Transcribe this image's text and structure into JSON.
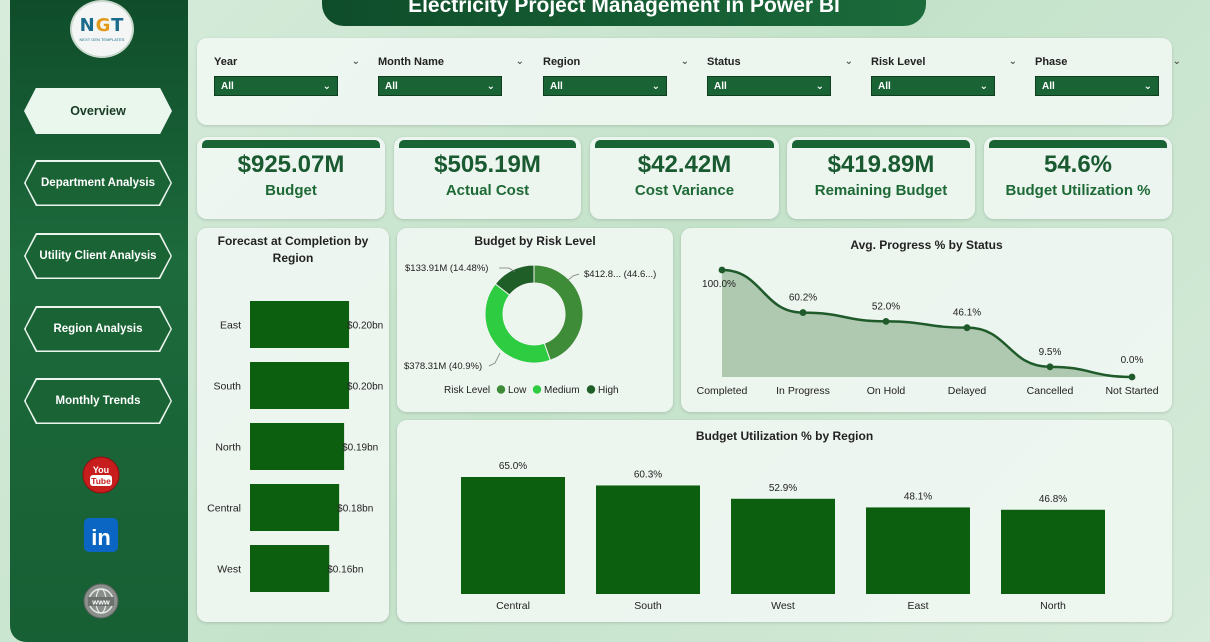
{
  "title": "Electricity Project Management in Power BI",
  "logo": {
    "text": "NGT",
    "subtext": "NEXT GEN TEMPLATES"
  },
  "nav": {
    "items": [
      {
        "label": "Overview",
        "active": true
      },
      {
        "label": "Department Analysis",
        "active": false
      },
      {
        "label": "Utility Client Analysis",
        "active": false
      },
      {
        "label": "Region Analysis",
        "active": false
      },
      {
        "label": "Monthly Trends",
        "active": false
      }
    ]
  },
  "social": [
    {
      "icon": "youtube-icon",
      "text": "You Tube"
    },
    {
      "icon": "linkedin-icon",
      "text": "in"
    },
    {
      "icon": "website-icon",
      "text": "www"
    }
  ],
  "filters": [
    {
      "label": "Year",
      "value": "All"
    },
    {
      "label": "Month Name",
      "value": "All"
    },
    {
      "label": "Region",
      "value": "All"
    },
    {
      "label": "Status",
      "value": "All"
    },
    {
      "label": "Risk Level",
      "value": "All"
    },
    {
      "label": "Phase",
      "value": "All"
    }
  ],
  "kpis": [
    {
      "value": "$925.07M",
      "label": "Budget"
    },
    {
      "value": "$505.19M",
      "label": "Actual Cost"
    },
    {
      "value": "$42.42M",
      "label": "Cost Variance"
    },
    {
      "value": "$419.89M",
      "label": "Remaining Budget"
    },
    {
      "value": "54.6%",
      "label": "Budget Utilization %"
    }
  ],
  "colors": {
    "dark_green": "#1a6335",
    "bar_green": "#0d5f10",
    "medium_green": "#2ecc40",
    "low_green": "#3e8b38",
    "high_green": "#1f5e26",
    "area_fill": "#a3bfa5"
  },
  "chart_data": [
    {
      "type": "bar",
      "orientation": "horizontal",
      "title": "Forecast at Completion by Region",
      "categories": [
        "East",
        "South",
        "North",
        "Central",
        "West"
      ],
      "values": [
        0.2,
        0.2,
        0.19,
        0.18,
        0.16
      ],
      "labels": [
        "$0.20bn",
        "$0.20bn",
        "$0.19bn",
        "$0.18bn",
        "$0.16bn"
      ],
      "xlim": [
        0,
        0.21
      ]
    },
    {
      "type": "pie",
      "title": "Budget by Risk Level",
      "legend_title": "Risk Level",
      "slices": [
        {
          "name": "Low",
          "value": 412.8,
          "label": "$412.8... (44.6...)",
          "color": "#3e8b38"
        },
        {
          "name": "Medium",
          "value": 378.31,
          "label": "$378.31M (40.9%)",
          "color": "#2ecc40"
        },
        {
          "name": "High",
          "value": 133.91,
          "label": "$133.91M (14.48%)",
          "color": "#1f5e26"
        }
      ]
    },
    {
      "type": "area",
      "title": "Avg. Progress % by Status",
      "categories": [
        "Completed",
        "In Progress",
        "On Hold",
        "Delayed",
        "Cancelled",
        "Not Started"
      ],
      "values": [
        100.0,
        60.2,
        52.0,
        46.1,
        9.5,
        0.0
      ],
      "labels": [
        "100.0%",
        "60.2%",
        "52.0%",
        "46.1%",
        "9.5%",
        "0.0%"
      ],
      "ylim": [
        0,
        100
      ]
    },
    {
      "type": "bar",
      "title": "Budget Utilization % by Region",
      "categories": [
        "Central",
        "South",
        "West",
        "East",
        "North"
      ],
      "values": [
        65.0,
        60.3,
        52.9,
        48.1,
        46.8
      ],
      "labels": [
        "65.0%",
        "60.3%",
        "52.9%",
        "48.1%",
        "46.8%"
      ],
      "ylim": [
        0,
        70
      ]
    }
  ]
}
